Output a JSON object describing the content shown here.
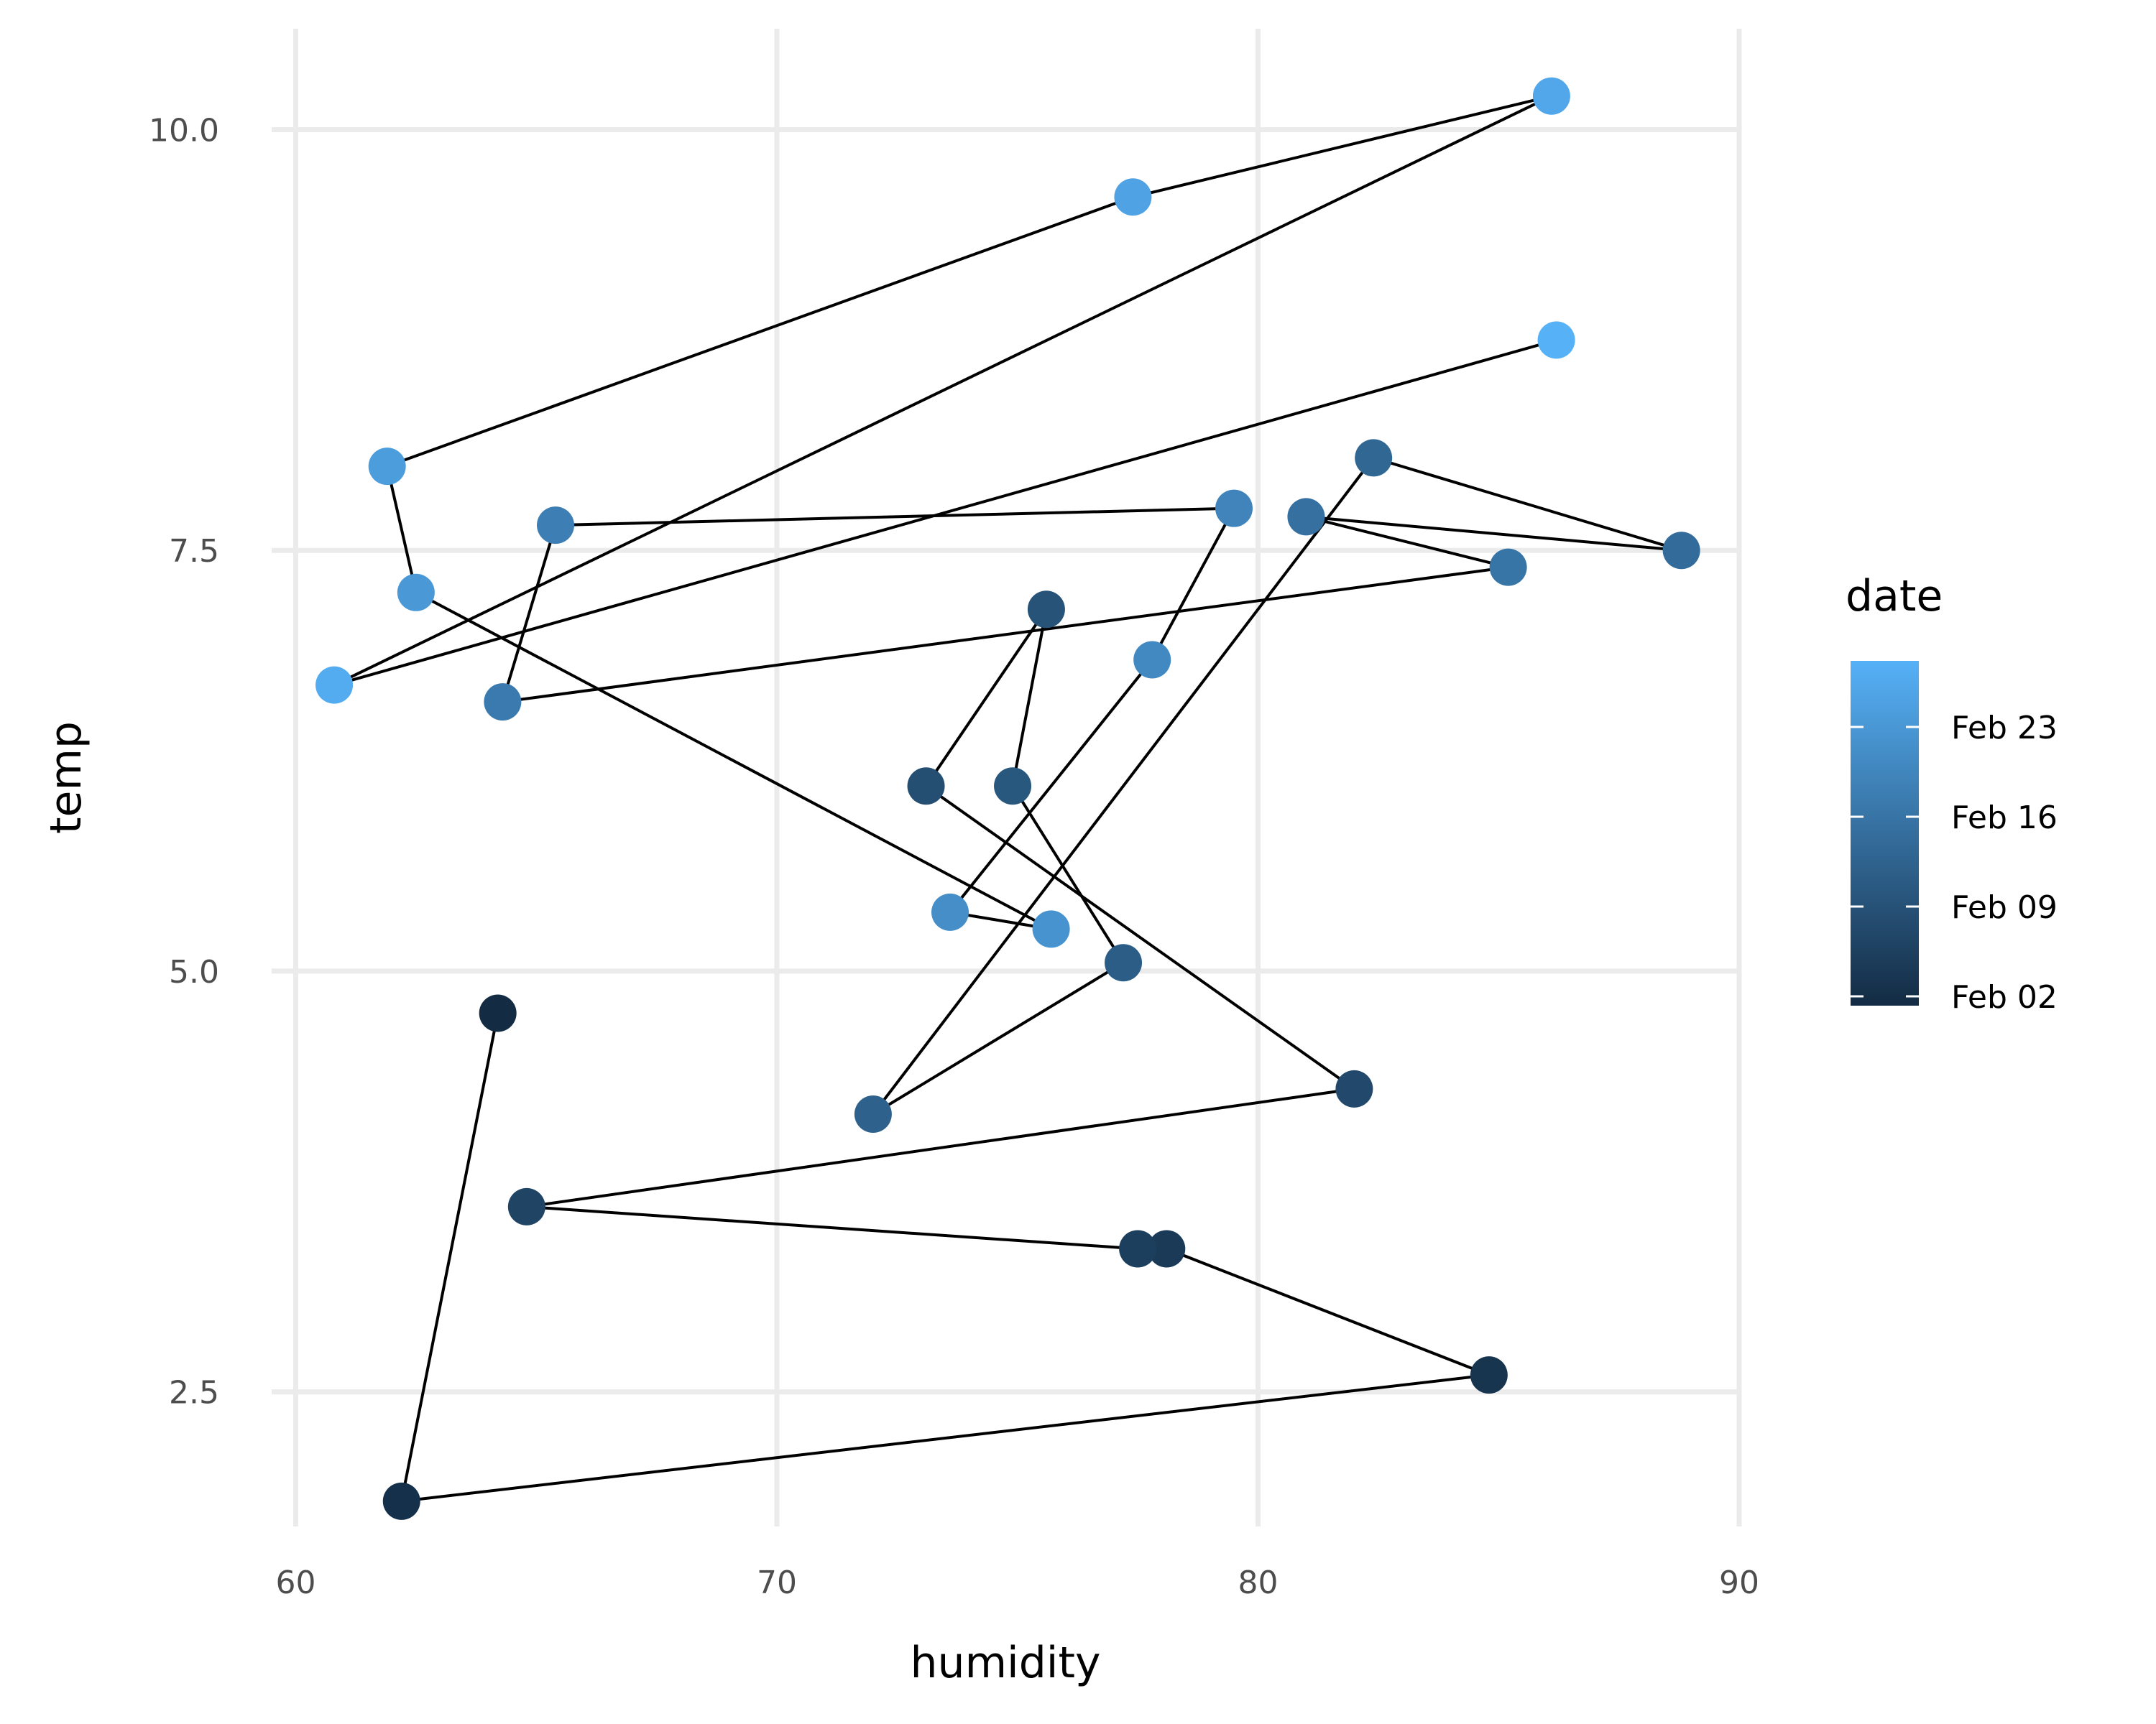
{
  "chart_data": {
    "type": "scatter",
    "connected_path": true,
    "xlabel": "humidity",
    "ylabel": "temp",
    "xlim": [
      59.5,
      90
    ],
    "ylim": [
      1.7,
      10.6
    ],
    "x_ticks": [
      60,
      70,
      80,
      90
    ],
    "y_ticks": [
      2.5,
      5.0,
      7.5,
      10.0
    ],
    "x_tick_labels": [
      "60",
      "70",
      "80",
      "90"
    ],
    "y_tick_labels": [
      "2.5",
      "5.0",
      "7.5",
      "10.0"
    ],
    "grid": true,
    "line_color": "#000000",
    "legend": {
      "title": "date",
      "type": "colorbar",
      "position": "right",
      "labels": [
        "Feb 23",
        "Feb 16",
        "Feb 09",
        "Feb 02"
      ],
      "color_low": "#132B43",
      "color_high": "#56B1F7"
    },
    "points": [
      {
        "order": 1,
        "x": 64.2,
        "y": 4.75
      },
      {
        "order": 2,
        "x": 62.2,
        "y": 1.85
      },
      {
        "order": 3,
        "x": 84.8,
        "y": 2.6
      },
      {
        "order": 4,
        "x": 78.1,
        "y": 3.35
      },
      {
        "order": 5,
        "x": 77.5,
        "y": 3.35
      },
      {
        "order": 6,
        "x": 64.8,
        "y": 3.6
      },
      {
        "order": 7,
        "x": 82.0,
        "y": 4.3
      },
      {
        "order": 8,
        "x": 73.1,
        "y": 6.1
      },
      {
        "order": 9,
        "x": 75.6,
        "y": 7.15
      },
      {
        "order": 10,
        "x": 74.9,
        "y": 6.1
      },
      {
        "order": 11,
        "x": 77.2,
        "y": 5.05
      },
      {
        "order": 12,
        "x": 72.0,
        "y": 4.15
      },
      {
        "order": 13,
        "x": 82.4,
        "y": 8.05
      },
      {
        "order": 14,
        "x": 88.8,
        "y": 7.5
      },
      {
        "order": 15,
        "x": 81.0,
        "y": 7.7
      },
      {
        "order": 16,
        "x": 85.2,
        "y": 7.4
      },
      {
        "order": 17,
        "x": 64.3,
        "y": 6.6
      },
      {
        "order": 18,
        "x": 65.4,
        "y": 7.65
      },
      {
        "order": 19,
        "x": 79.5,
        "y": 7.75
      },
      {
        "order": 20,
        "x": 77.8,
        "y": 6.85
      },
      {
        "order": 21,
        "x": 73.6,
        "y": 5.35
      },
      {
        "order": 22,
        "x": 75.7,
        "y": 5.25
      },
      {
        "order": 23,
        "x": 62.5,
        "y": 7.25
      },
      {
        "order": 24,
        "x": 61.9,
        "y": 8.0
      },
      {
        "order": 25,
        "x": 77.4,
        "y": 9.6
      },
      {
        "order": 26,
        "x": 86.1,
        "y": 10.2
      },
      {
        "order": 27,
        "x": 60.8,
        "y": 6.7
      },
      {
        "order": 28,
        "x": 86.2,
        "y": 8.75
      }
    ]
  }
}
